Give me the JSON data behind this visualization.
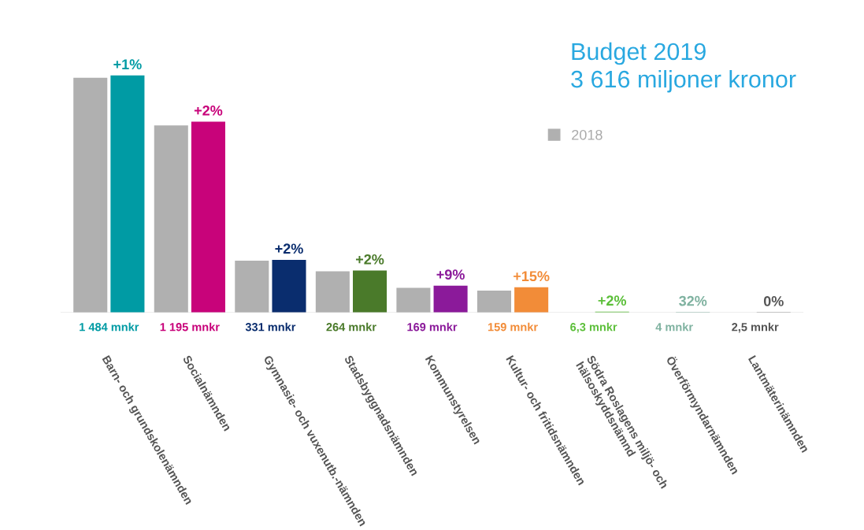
{
  "chart_data": {
    "type": "bar",
    "title": "Budget 2019\n3 616 miljoner kronor",
    "categories": [
      "Barn- och grundskolenämnden",
      "Socialnämnden",
      "Gymnasie- och vuxenutb.-nämnden",
      "Stadsbyggnadsnämnden",
      "Kommunstyrelsen",
      "Kultur- och fritidsnämnden",
      "Södra Roslagens miljö- och\nhälsoskyddsnämnd",
      "Överförmyndarnämnden",
      "Lantmäterinämnden"
    ],
    "series": [
      {
        "name": "2018",
        "color": "#b0b0b0",
        "values": [
          1469,
          1172,
          325,
          259,
          155,
          138,
          null,
          null,
          null
        ]
      },
      {
        "colors": [
          "#009ba4",
          "#c8037a",
          "#0a2d6e",
          "#4a7a2a",
          "#8b1a9a",
          "#f28c38",
          "#5cbf3a",
          "#7fb2a0",
          "#555555"
        ],
        "values": [
          1484,
          1195,
          331,
          264,
          169,
          159,
          6.3,
          4,
          2.5
        ],
        "value_labels": [
          "1 484 mnkr",
          "1 195 mnkr",
          "331 mnkr",
          "264 mnkr",
          "169 mnkr",
          "159 mnkr",
          "6,3 mnkr",
          "4 mnkr",
          "2,5 mnkr"
        ]
      }
    ],
    "annotations": [
      {
        "text": "+1%",
        "x": "Barn- och grundskolenämnden",
        "y": 1484
      },
      {
        "text": "+2%",
        "x": "Socialnämnden",
        "y": 1195
      },
      {
        "text": "+2%",
        "x": "Gymnasie- och vuxenutb.-nämnden",
        "y": 331
      },
      {
        "text": "+2%",
        "x": "Stadsbyggnadsnämnden",
        "y": 264
      },
      {
        "text": "+9%",
        "x": "Kommunstyrelsen",
        "y": 169
      },
      {
        "text": "+15%",
        "x": "Kultur- och fritidsnämnden",
        "y": 159
      },
      "+2%",
      "32%",
      "0%"
    ],
    "legend": "top right",
    "grid": false
  }
}
